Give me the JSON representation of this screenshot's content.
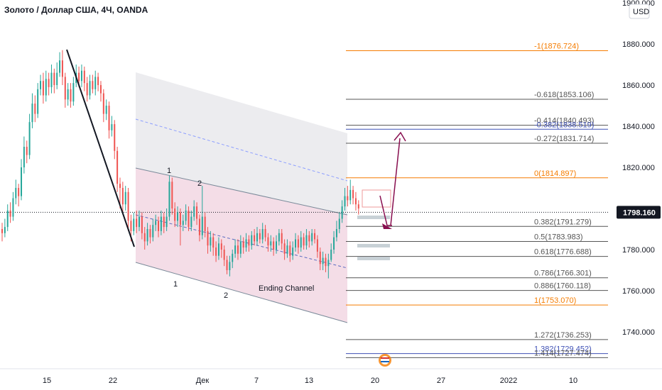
{
  "header": {
    "title": "Золото / Доллар США, 4Ч, OANDA"
  },
  "price_axis": {
    "currency": "USD",
    "top_label": "1900.000",
    "current_price": "1798.160"
  },
  "colors": {
    "bull": "#26a69a",
    "bear": "#ef5350",
    "fib_orange": "#f57c00",
    "fib_dark": "#555555",
    "fib_blue": "#3f51b5",
    "channel_upper_fill": "#e9e9ec",
    "channel_lower_fill": "#f2d7e3",
    "arrow": "#880e4f",
    "current_price_bg": "#131722"
  },
  "chart_data": {
    "type": "candlestick",
    "title": "Золото / Доллар США, 4Ч, OANDA",
    "y_axis": {
      "min": 1727,
      "max": 1900,
      "ticks": [
        1740,
        1760,
        1780,
        1800,
        1820,
        1840,
        1860,
        1880
      ],
      "labels": [
        "1740.000",
        "1760.000",
        "1780.000",
        "1800.000",
        "1820.000",
        "1840.000",
        "1860.000",
        "1880.000"
      ]
    },
    "x_axis": {
      "labels": [
        "15",
        "22",
        "Дек",
        "7",
        "13",
        "20",
        "27",
        "2022",
        "10"
      ]
    },
    "fib_levels": [
      {
        "label": "-1(1876.724)",
        "price": 1876.724,
        "color": "orange"
      },
      {
        "label": "-0.618(1853.106)",
        "price": 1853.106,
        "color": "dark"
      },
      {
        "label": "-0.414(1840.493)",
        "price": 1840.493,
        "color": "dark"
      },
      {
        "label": "-0.382(1838.519)",
        "price": 1838.519,
        "color": "blue"
      },
      {
        "label": "-0.272(1831.714)",
        "price": 1831.714,
        "color": "dark"
      },
      {
        "label": "0(1814.897)",
        "price": 1814.897,
        "color": "orange"
      },
      {
        "label": "0.382(1791.279)",
        "price": 1791.279,
        "color": "dark"
      },
      {
        "label": "0.5(1783.983)",
        "price": 1783.983,
        "color": "dark"
      },
      {
        "label": "0.618(1776.688)",
        "price": 1776.688,
        "color": "dark"
      },
      {
        "label": "0.786(1766.301)",
        "price": 1766.301,
        "color": "dark"
      },
      {
        "label": "0.886(1760.118)",
        "price": 1760.118,
        "color": "dark"
      },
      {
        "label": "1(1753.070)",
        "price": 1753.07,
        "color": "orange"
      },
      {
        "label": "1.272(1736.253)",
        "price": 1736.253,
        "color": "dark"
      },
      {
        "label": "1.382(1729.452)",
        "price": 1729.452,
        "color": "blue"
      },
      {
        "label": "1.414(1727.474)",
        "price": 1727.474,
        "color": "dark"
      }
    ],
    "annotations": {
      "channel_label": "Ending Channel",
      "upper_touches": [
        "1",
        "2"
      ],
      "lower_touches": [
        "1",
        "2"
      ]
    },
    "candles": [
      [
        1790,
        1788,
        1793,
        1784
      ],
      [
        1788,
        1791,
        1795,
        1786
      ],
      [
        1791,
        1799,
        1802,
        1789
      ],
      [
        1799,
        1796,
        1803,
        1793
      ],
      [
        1796,
        1805,
        1808,
        1794
      ],
      [
        1805,
        1810,
        1814,
        1802
      ],
      [
        1810,
        1806,
        1812,
        1801
      ],
      [
        1806,
        1820,
        1824,
        1804
      ],
      [
        1820,
        1830,
        1835,
        1817
      ],
      [
        1830,
        1826,
        1833,
        1822
      ],
      [
        1826,
        1842,
        1846,
        1824
      ],
      [
        1842,
        1851,
        1856,
        1839
      ],
      [
        1851,
        1846,
        1855,
        1842
      ],
      [
        1846,
        1858,
        1861,
        1844
      ],
      [
        1858,
        1862,
        1865,
        1855
      ],
      [
        1862,
        1855,
        1866,
        1851
      ],
      [
        1855,
        1863,
        1867,
        1852
      ],
      [
        1863,
        1859,
        1866,
        1855
      ],
      [
        1859,
        1866,
        1870,
        1856
      ],
      [
        1866,
        1860,
        1868,
        1856
      ],
      [
        1860,
        1866,
        1871,
        1858
      ],
      [
        1866,
        1872,
        1876,
        1864
      ],
      [
        1872,
        1864,
        1877,
        1860
      ],
      [
        1864,
        1853,
        1866,
        1849
      ],
      [
        1853,
        1858,
        1861,
        1850
      ],
      [
        1858,
        1852,
        1861,
        1849
      ],
      [
        1852,
        1861,
        1864,
        1850
      ],
      [
        1861,
        1866,
        1870,
        1859
      ],
      [
        1866,
        1862,
        1869,
        1859
      ],
      [
        1862,
        1867,
        1870,
        1859
      ],
      [
        1867,
        1861,
        1869,
        1857
      ],
      [
        1861,
        1855,
        1864,
        1852
      ],
      [
        1855,
        1862,
        1865,
        1853
      ],
      [
        1862,
        1858,
        1865,
        1856
      ],
      [
        1858,
        1864,
        1867,
        1855
      ],
      [
        1864,
        1860,
        1866,
        1857
      ],
      [
        1860,
        1856,
        1862,
        1852
      ],
      [
        1856,
        1846,
        1858,
        1842
      ],
      [
        1846,
        1850,
        1853,
        1843
      ],
      [
        1850,
        1838,
        1852,
        1834
      ],
      [
        1838,
        1841,
        1845,
        1835
      ],
      [
        1841,
        1828,
        1843,
        1824
      ],
      [
        1828,
        1812,
        1830,
        1808
      ],
      [
        1812,
        1810,
        1815,
        1800
      ],
      [
        1810,
        1802,
        1813,
        1797
      ],
      [
        1802,
        1808,
        1811,
        1799
      ],
      [
        1808,
        1794,
        1810,
        1789
      ],
      [
        1794,
        1789,
        1797,
        1784
      ],
      [
        1789,
        1795,
        1798,
        1787
      ],
      [
        1795,
        1791,
        1799,
        1788
      ],
      [
        1791,
        1796,
        1799,
        1789
      ],
      [
        1796,
        1788,
        1798,
        1785
      ],
      [
        1788,
        1784,
        1791,
        1780
      ],
      [
        1784,
        1790,
        1793,
        1782
      ],
      [
        1790,
        1786,
        1792,
        1783
      ],
      [
        1786,
        1792,
        1795,
        1784
      ],
      [
        1792,
        1794,
        1797,
        1789
      ],
      [
        1794,
        1789,
        1796,
        1786
      ],
      [
        1789,
        1796,
        1799,
        1787
      ],
      [
        1796,
        1791,
        1798,
        1788
      ],
      [
        1791,
        1796,
        1800,
        1789
      ],
      [
        1796,
        1813,
        1816,
        1794
      ],
      [
        1813,
        1800,
        1815,
        1797
      ],
      [
        1800,
        1794,
        1803,
        1791
      ],
      [
        1794,
        1798,
        1801,
        1791
      ],
      [
        1798,
        1792,
        1800,
        1782
      ],
      [
        1792,
        1794,
        1797,
        1789
      ],
      [
        1794,
        1799,
        1802,
        1792
      ],
      [
        1799,
        1791,
        1801,
        1789
      ],
      [
        1791,
        1796,
        1799,
        1789
      ],
      [
        1796,
        1801,
        1804,
        1794
      ],
      [
        1801,
        1795,
        1803,
        1792
      ],
      [
        1795,
        1787,
        1797,
        1784
      ],
      [
        1787,
        1796,
        1811,
        1785
      ],
      [
        1796,
        1789,
        1798,
        1786
      ],
      [
        1789,
        1782,
        1791,
        1778
      ],
      [
        1782,
        1786,
        1789,
        1779
      ],
      [
        1786,
        1781,
        1788,
        1777
      ],
      [
        1781,
        1777,
        1784,
        1774
      ],
      [
        1777,
        1783,
        1786,
        1775
      ],
      [
        1783,
        1780,
        1785,
        1776
      ],
      [
        1780,
        1775,
        1782,
        1772
      ],
      [
        1775,
        1770,
        1777,
        1768
      ],
      [
        1770,
        1774,
        1777,
        1767
      ],
      [
        1774,
        1778,
        1780,
        1771
      ],
      [
        1778,
        1782,
        1785,
        1776
      ],
      [
        1782,
        1778,
        1785,
        1775
      ],
      [
        1778,
        1784,
        1787,
        1776
      ],
      [
        1784,
        1781,
        1786,
        1778
      ],
      [
        1781,
        1785,
        1788,
        1779
      ],
      [
        1785,
        1782,
        1787,
        1779
      ],
      [
        1782,
        1787,
        1789,
        1780
      ],
      [
        1787,
        1784,
        1790,
        1782
      ],
      [
        1784,
        1788,
        1791,
        1782
      ],
      [
        1788,
        1785,
        1790,
        1783
      ],
      [
        1785,
        1790,
        1793,
        1783
      ],
      [
        1790,
        1786,
        1792,
        1784
      ],
      [
        1786,
        1782,
        1788,
        1779
      ],
      [
        1782,
        1784,
        1787,
        1779
      ],
      [
        1784,
        1780,
        1786,
        1777
      ],
      [
        1780,
        1784,
        1787,
        1778
      ],
      [
        1784,
        1788,
        1790,
        1782
      ],
      [
        1788,
        1783,
        1790,
        1780
      ],
      [
        1783,
        1778,
        1785,
        1775
      ],
      [
        1778,
        1782,
        1785,
        1776
      ],
      [
        1782,
        1777,
        1784,
        1774
      ],
      [
        1777,
        1781,
        1784,
        1775
      ],
      [
        1781,
        1785,
        1788,
        1779
      ],
      [
        1785,
        1781,
        1787,
        1778
      ],
      [
        1781,
        1786,
        1789,
        1779
      ],
      [
        1786,
        1782,
        1788,
        1780
      ],
      [
        1782,
        1787,
        1790,
        1780
      ],
      [
        1787,
        1784,
        1789,
        1781
      ],
      [
        1784,
        1788,
        1790,
        1782
      ],
      [
        1788,
        1785,
        1790,
        1783
      ],
      [
        1785,
        1779,
        1787,
        1776
      ],
      [
        1779,
        1773,
        1781,
        1770
      ],
      [
        1773,
        1776,
        1779,
        1770
      ],
      [
        1776,
        1772,
        1778,
        1769
      ],
      [
        1772,
        1775,
        1778,
        1766
      ],
      [
        1775,
        1780,
        1783,
        1774
      ],
      [
        1780,
        1786,
        1789,
        1778
      ],
      [
        1786,
        1790,
        1794,
        1784
      ],
      [
        1790,
        1795,
        1798,
        1788
      ],
      [
        1795,
        1801,
        1804,
        1793
      ],
      [
        1801,
        1806,
        1810,
        1799
      ],
      [
        1806,
        1804,
        1811,
        1801
      ],
      [
        1804,
        1809,
        1814,
        1802
      ],
      [
        1809,
        1805,
        1811,
        1802
      ],
      [
        1805,
        1802,
        1808,
        1799
      ],
      [
        1802,
        1800,
        1804,
        1797
      ]
    ]
  }
}
